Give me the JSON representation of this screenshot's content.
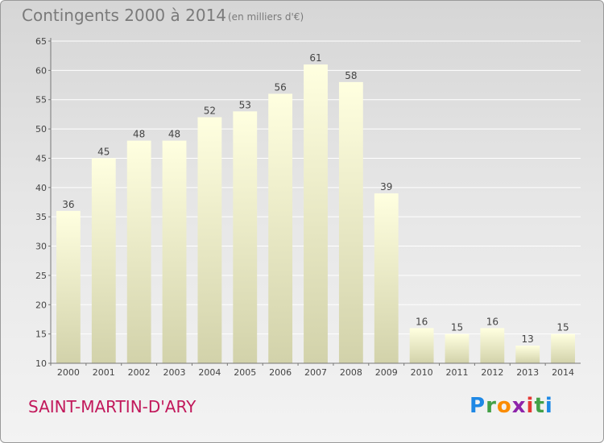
{
  "chart_data": {
    "type": "bar",
    "title": "Contingents 2000 à 2014",
    "subtitle": "(en milliers d'€)",
    "categories": [
      "2000",
      "2001",
      "2002",
      "2003",
      "2004",
      "2005",
      "2006",
      "2007",
      "2008",
      "2009",
      "2010",
      "2011",
      "2012",
      "2013",
      "2014"
    ],
    "values": [
      36,
      45,
      48,
      48,
      52,
      53,
      56,
      61,
      58,
      39,
      16,
      15,
      16,
      13,
      15
    ],
    "ylim": [
      10,
      65
    ],
    "yticks": [
      10,
      15,
      20,
      25,
      30,
      35,
      40,
      45,
      50,
      55,
      60,
      65
    ],
    "grid": true,
    "bar_color_top": "#ffffe0",
    "bar_color_bottom": "#d2d2aa"
  },
  "footer": {
    "commune": "SAINT-MARTIN-D'ARY",
    "logo": "Proxiti",
    "commune_color": "#c2185b"
  }
}
